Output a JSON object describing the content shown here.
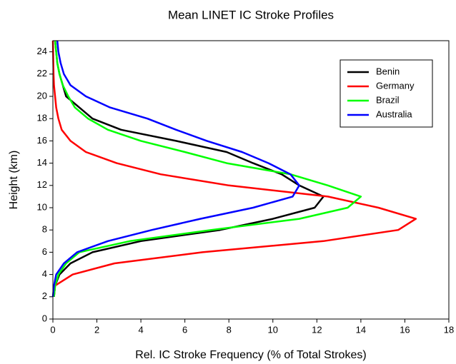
{
  "chart_data": {
    "type": "line",
    "title": "Mean LINET IC Stroke Profiles",
    "x_label": "Rel. IC Stroke Frequency (% of Total Strokes)",
    "y_label": "Height (km)",
    "y": [
      2,
      3,
      4,
      5,
      6,
      7,
      8,
      9,
      10,
      11,
      12,
      13,
      14,
      15,
      16,
      17,
      18,
      19,
      20,
      21,
      22,
      23,
      24,
      25
    ],
    "series": [
      {
        "name": "Benin",
        "color": "#000000",
        "values": [
          0.05,
          0.1,
          0.3,
          0.8,
          1.8,
          4.0,
          7.6,
          10.0,
          11.9,
          12.3,
          11.2,
          10.4,
          9.1,
          7.9,
          5.6,
          3.1,
          1.8,
          1.2,
          0.6,
          0.45,
          0.3,
          0.2,
          0.15,
          0.1
        ]
      },
      {
        "name": "Germany",
        "color": "#ff0000",
        "values": [
          0.05,
          0.1,
          0.9,
          2.8,
          6.8,
          12.3,
          15.7,
          16.5,
          14.8,
          12.5,
          8.0,
          4.9,
          2.9,
          1.5,
          0.8,
          0.4,
          0.25,
          0.15,
          0.1,
          0.05,
          0.03,
          0.02,
          0.01,
          0.0
        ]
      },
      {
        "name": "Brazil",
        "color": "#00ff00",
        "values": [
          0.05,
          0.1,
          0.25,
          0.6,
          1.2,
          3.5,
          7.2,
          11.2,
          13.4,
          14.0,
          12.5,
          10.8,
          7.9,
          6.0,
          4.0,
          2.5,
          1.6,
          1.0,
          0.7,
          0.45,
          0.3,
          0.2,
          0.15,
          0.1
        ]
      },
      {
        "name": "Australia",
        "color": "#0000ff",
        "values": [
          0.0,
          0.05,
          0.15,
          0.5,
          1.1,
          2.5,
          4.5,
          6.7,
          9.1,
          10.9,
          11.2,
          10.8,
          9.8,
          8.6,
          7.0,
          5.6,
          4.3,
          2.6,
          1.5,
          0.8,
          0.5,
          0.35,
          0.25,
          0.2
        ]
      }
    ],
    "xlim": [
      0,
      18
    ],
    "xticks": [
      0,
      2,
      4,
      6,
      8,
      10,
      12,
      14,
      16,
      18
    ],
    "ylim": [
      0,
      25
    ],
    "yticks": [
      0,
      2,
      4,
      6,
      8,
      10,
      12,
      14,
      16,
      18,
      20,
      22,
      24
    ],
    "legend": "upper right"
  }
}
